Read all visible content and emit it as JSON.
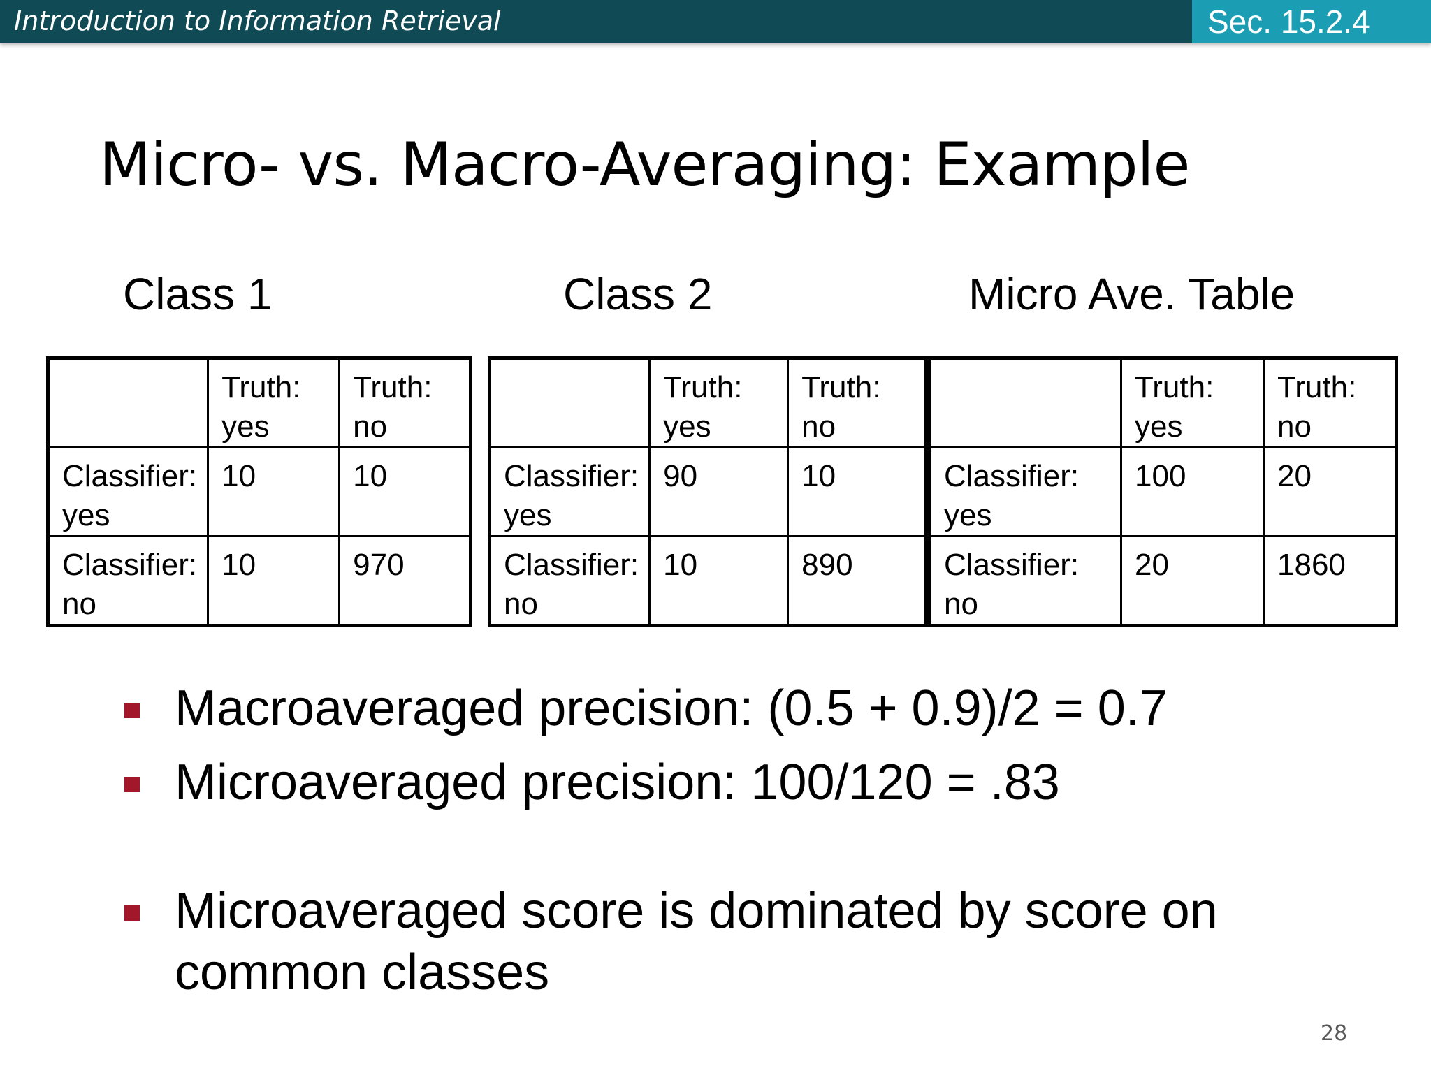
{
  "header": {
    "course": "Introduction to Information Retrieval",
    "section": "Sec. 15.2.4"
  },
  "title": "Micro- vs. Macro-Averaging: Example",
  "tables": [
    {
      "caption": "Class 1",
      "header": [
        "",
        "Truth: yes",
        "Truth: no"
      ],
      "rows": [
        [
          "Classifier: yes",
          "10",
          "10"
        ],
        [
          "Classifier: no",
          "10",
          "970"
        ]
      ]
    },
    {
      "caption": "Class 2",
      "header": [
        "",
        "Truth: yes",
        "Truth: no"
      ],
      "rows": [
        [
          "Classifier: yes",
          "90",
          "10"
        ],
        [
          "Classifier: no",
          "10",
          "890"
        ]
      ]
    },
    {
      "caption": "Micro Ave. Table",
      "header": [
        "",
        "Truth: yes",
        "Truth: no"
      ],
      "rows": [
        [
          "Classifier: yes",
          "100",
          "20"
        ],
        [
          "Classifier: no",
          "20",
          "1860"
        ]
      ]
    }
  ],
  "bullets": [
    "Macroaveraged precision: (0.5 + 0.9)/2 = 0.7",
    "Microaveraged precision: 100/120 = .83",
    "Microaveraged score is dominated by score on common classes"
  ],
  "page_number": "28",
  "colors": {
    "header_bg": "#104a55",
    "section_bg": "#1b9db4",
    "bullet_marker": "#a3172a"
  }
}
